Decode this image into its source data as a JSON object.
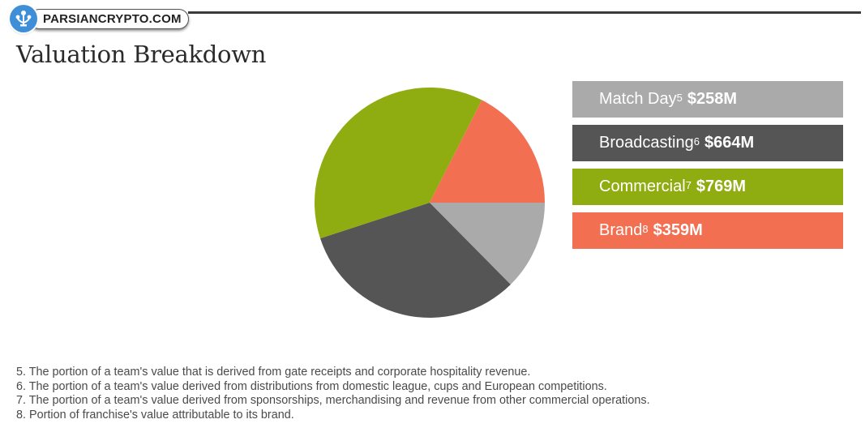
{
  "logo": {
    "text": "PARSIANCRYPTO.COM"
  },
  "title": "Valuation Breakdown",
  "chart_data": {
    "type": "pie",
    "title": "Valuation Breakdown",
    "slices": [
      {
        "label": "Match Day",
        "footnote": "5",
        "value": 258,
        "display": "$258M",
        "color": "#aaaaaa"
      },
      {
        "label": "Broadcasting",
        "footnote": "6",
        "value": 664,
        "display": "$664M",
        "color": "#555555"
      },
      {
        "label": "Commercial",
        "footnote": "7",
        "value": 769,
        "display": "$769M",
        "color": "#8fac10"
      },
      {
        "label": "Brand",
        "footnote": "8",
        "value": 359,
        "display": "$359M",
        "color": "#f36f52"
      }
    ]
  },
  "footnotes": [
    "5. The portion of a team's value that is derived from gate receipts and corporate hospitality revenue.",
    "6. The portion of a team's value derived from distributions from domestic league, cups and European competitions.",
    "7. The portion of a team's value derived from sponsorships, merchandising and revenue from other commercial operations.",
    "8. Portion of franchise's value attributable to its brand."
  ]
}
